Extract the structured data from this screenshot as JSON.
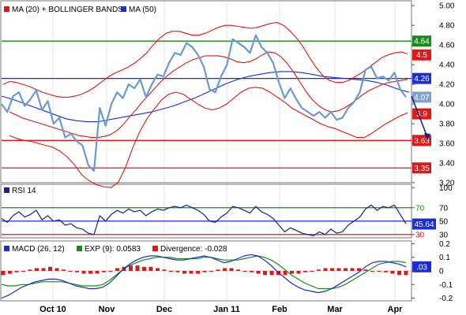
{
  "chart_data": [
    {
      "panel": "price",
      "type": "line",
      "legend": [
        {
          "label": "MA (20) + BOLLINGER BANDS",
          "color": "#e01818"
        },
        {
          "label": "MA (50)",
          "color": "#1a2dd6"
        }
      ],
      "ylim": [
        3.2,
        5.05
      ],
      "y_ticks": [
        "5.00",
        "4.80",
        "4.60",
        "4.40",
        "4.20",
        "4.00",
        "3.80",
        "3.60",
        "3.40",
        "3.20"
      ],
      "x_labels": [
        "Oct 10",
        "Nov",
        "Dec",
        "Jan 11",
        "Feb",
        "Mar",
        "Apr"
      ],
      "horizontal_lines": [
        {
          "value": 4.64,
          "label": "4.64",
          "color": "#1a8a1a"
        },
        {
          "value": 4.26,
          "label": "4.26",
          "color": "#1a2dd6"
        },
        {
          "value": 3.63,
          "label": "3.63",
          "color": "#e01818"
        },
        {
          "value": 3.35,
          "label": "3.35",
          "color": "#e01818"
        }
      ],
      "value_tags": [
        {
          "value": 4.5,
          "label": "4.5",
          "color": "#e01818"
        },
        {
          "value": 4.07,
          "label": "4.07",
          "color": "#7fa3cc"
        },
        {
          "value": 3.9,
          "label": "3.9",
          "color": "#e01818"
        }
      ],
      "series": [
        {
          "name": "price",
          "color": "#6a9ad0",
          "values": [
            4.0,
            3.92,
            4.08,
            4.12,
            3.98,
            4.05,
            4.14,
            3.94,
            4.03,
            3.8,
            3.86,
            3.66,
            3.7,
            3.62,
            3.58,
            3.38,
            3.32,
            3.96,
            3.78,
            4.0,
            4.12,
            4.06,
            4.2,
            4.16,
            4.25,
            4.07,
            4.2,
            4.3,
            4.28,
            4.42,
            4.52,
            4.5,
            4.62,
            4.58,
            4.5,
            4.38,
            4.15,
            4.12,
            4.28,
            4.4,
            4.66,
            4.62,
            4.58,
            4.52,
            4.7,
            4.58,
            4.52,
            4.42,
            4.22,
            4.06,
            4.16,
            4.05,
            3.96,
            3.92,
            3.88,
            3.92,
            3.86,
            3.92,
            3.84,
            3.86,
            3.96,
            4.02,
            4.12,
            4.35,
            4.38,
            4.26,
            4.28,
            4.24,
            4.32,
            4.15,
            4.07
          ]
        },
        {
          "name": "MA (20)",
          "color": "#e01818",
          "values": [
            3.92,
            3.89,
            3.86,
            3.84,
            3.82,
            3.8,
            3.78,
            3.76,
            3.74,
            3.72,
            3.7,
            3.68,
            3.67,
            3.66,
            3.66,
            3.67,
            3.69,
            3.73,
            3.79,
            3.87,
            3.94,
            4.02,
            4.09,
            4.16,
            4.23,
            4.29,
            4.34,
            4.38,
            4.42,
            4.45,
            4.47,
            4.49,
            4.49,
            4.49,
            4.48,
            4.46,
            4.43,
            4.42,
            4.43,
            4.46,
            4.5,
            4.53,
            4.52,
            4.48,
            4.41,
            4.32,
            4.22,
            4.12,
            4.04,
            3.98,
            3.94,
            3.92,
            3.93,
            3.96,
            4.0,
            4.05,
            4.1,
            4.14,
            4.17,
            4.2,
            4.22,
            4.23,
            4.24,
            4.25
          ]
        },
        {
          "name": "Upper band",
          "color": "#e01818",
          "values": [
            4.2,
            4.23,
            4.22,
            4.2,
            4.18,
            4.15,
            4.12,
            4.1,
            4.08,
            4.07,
            4.07,
            4.08,
            4.1,
            4.13,
            4.17,
            4.22,
            4.27,
            4.31,
            4.34,
            4.37,
            4.41,
            4.46,
            4.52,
            4.6,
            4.67,
            4.72,
            4.74,
            4.74,
            4.72,
            4.7,
            4.7,
            4.72,
            4.75,
            4.78,
            4.8,
            4.8,
            4.79,
            4.78,
            4.77,
            4.78,
            4.8,
            4.82,
            4.83,
            4.8,
            4.74,
            4.67,
            4.58,
            4.47,
            4.37,
            4.29,
            4.24,
            4.22,
            4.22,
            4.24,
            4.28,
            4.32,
            4.37,
            4.42,
            4.47,
            4.5,
            4.52,
            4.53,
            4.51
          ]
        },
        {
          "name": "Lower band",
          "color": "#e01818",
          "values": [
            3.68,
            3.65,
            3.63,
            3.62,
            3.6,
            3.58,
            3.56,
            3.52,
            3.46,
            3.38,
            3.28,
            3.22,
            3.18,
            3.16,
            3.15,
            3.2,
            3.35,
            3.55,
            3.72,
            3.85,
            3.95,
            4.04,
            4.1,
            4.12,
            4.1,
            4.05,
            4.0,
            3.96,
            3.94,
            3.96,
            4.0,
            4.06,
            4.12,
            4.16,
            4.17,
            4.16,
            4.12,
            4.07,
            4.02,
            3.96,
            3.92,
            3.88,
            3.84,
            3.8,
            3.77,
            3.75,
            3.72,
            3.69,
            3.66,
            3.66,
            3.7,
            3.75,
            3.8,
            3.84,
            3.88,
            3.91
          ]
        },
        {
          "name": "MA (50)",
          "color": "#1a2dd6",
          "values": [
            4.08,
            4.05,
            4.01,
            3.97,
            3.93,
            3.89,
            3.85,
            3.83,
            3.82,
            3.82,
            3.84,
            3.86,
            3.88,
            3.9,
            3.92,
            3.95,
            3.98,
            4.02,
            4.06,
            4.11,
            4.16,
            4.21,
            4.25,
            4.28,
            4.3,
            4.32,
            4.33,
            4.33,
            4.32,
            4.3,
            4.28,
            4.27,
            4.26,
            4.25,
            4.24,
            4.22,
            4.19,
            4.15,
            4.12
          ]
        }
      ]
    },
    {
      "panel": "rsi",
      "type": "line",
      "legend": [
        {
          "label": "RSI 14",
          "color": "#1a237e"
        }
      ],
      "ylim": [
        25,
        105
      ],
      "y_ticks": [
        "100",
        "70",
        "50",
        "30"
      ],
      "reference_lines": [
        {
          "value": 70,
          "color": "#1a8a1a"
        },
        {
          "value": 50,
          "color": "#1a2dd6"
        },
        {
          "value": 30,
          "color": "#e01818"
        }
      ],
      "value_tags": [
        {
          "value": 70,
          "label": "70",
          "color": "#1a8a1a",
          "style": "text"
        },
        {
          "value": 45.64,
          "label": "45.64",
          "color": "#1a2dd6",
          "style": "box"
        },
        {
          "value": 30,
          "label": "30",
          "color": "#e01818",
          "style": "text"
        }
      ],
      "series": [
        {
          "name": "RSI 14",
          "color": "#1a237e",
          "values": [
            54,
            48,
            58,
            64,
            56,
            60,
            66,
            52,
            58,
            50,
            52,
            44,
            46,
            40,
            38,
            32,
            30,
            58,
            50,
            60,
            66,
            62,
            68,
            64,
            66,
            58,
            64,
            68,
            66,
            70,
            72,
            70,
            74,
            70,
            66,
            60,
            50,
            48,
            56,
            62,
            72,
            70,
            66,
            62,
            72,
            64,
            60,
            54,
            44,
            34,
            40,
            36,
            32,
            30,
            28,
            34,
            30,
            38,
            32,
            34,
            44,
            50,
            56,
            68,
            74,
            66,
            72,
            70,
            74,
            60,
            46
          ]
        }
      ]
    },
    {
      "panel": "macd",
      "type": "line",
      "legend": [
        {
          "label": "MACD (26, 12)",
          "color": "#1a2dd6"
        },
        {
          "label": "EXP (9): 0.0583",
          "color": "#1a8a1a"
        },
        {
          "label": "Divergence: -0.028",
          "color": "#e01818"
        }
      ],
      "ylim": [
        -0.22,
        0.22
      ],
      "y_ticks": [
        "0.2",
        "0.1",
        "0",
        "-0.1",
        "-0.2"
      ],
      "value_tags": [
        {
          "value": 0.03,
          "label": ".03",
          "color": "#1a2dd6",
          "style": "box"
        }
      ],
      "series": [
        {
          "name": "MACD (26, 12)",
          "color": "#1a2dd6",
          "values": [
            -0.2,
            -0.18,
            -0.15,
            -0.12,
            -0.1,
            -0.08,
            -0.07,
            -0.06,
            -0.06,
            -0.07,
            -0.09,
            -0.11,
            -0.12,
            -0.13,
            -0.13,
            -0.12,
            -0.09,
            -0.04,
            0.01,
            0.05,
            0.08,
            0.1,
            0.11,
            0.11,
            0.1,
            0.09,
            0.08,
            0.08,
            0.09,
            0.1,
            0.11,
            0.1,
            0.08,
            0.06,
            0.07,
            0.09,
            0.11,
            0.12,
            0.11,
            0.08,
            0.04,
            -0.01,
            -0.05,
            -0.09,
            -0.12,
            -0.14,
            -0.15,
            -0.16,
            -0.15,
            -0.13,
            -0.1,
            -0.07,
            -0.04,
            -0.01,
            0.03,
            0.06,
            0.07,
            0.07,
            0.06,
            0.05,
            0.03
          ]
        },
        {
          "name": "EXP (9)",
          "color": "#1a8a1a",
          "values": [
            -0.1,
            -0.11,
            -0.11,
            -0.1,
            -0.1,
            -0.09,
            -0.08,
            -0.08,
            -0.08,
            -0.08,
            -0.09,
            -0.1,
            -0.11,
            -0.11,
            -0.11,
            -0.1,
            -0.07,
            -0.03,
            0.01,
            0.04,
            0.06,
            0.08,
            0.09,
            0.1,
            0.1,
            0.1,
            0.09,
            0.09,
            0.09,
            0.09,
            0.1,
            0.1,
            0.09,
            0.08,
            0.08,
            0.08,
            0.09,
            0.1,
            0.11,
            0.1,
            0.08,
            0.05,
            0.01,
            -0.03,
            -0.06,
            -0.09,
            -0.11,
            -0.13,
            -0.13,
            -0.13,
            -0.12,
            -0.1,
            -0.07,
            -0.04,
            -0.01,
            0.02,
            0.05,
            0.06,
            0.07,
            0.07,
            0.06
          ]
        },
        {
          "name": "Divergence",
          "color": "#e01818",
          "type": "bar",
          "values": [
            -0.03,
            -0.02,
            -0.01,
            0.0,
            0.01,
            0.02,
            0.02,
            0.03,
            0.02,
            0.01,
            0.0,
            -0.01,
            -0.02,
            -0.02,
            -0.02,
            -0.01,
            0.0,
            0.02,
            0.03,
            0.04,
            0.04,
            0.03,
            0.03,
            0.02,
            0.01,
            0.0,
            -0.01,
            -0.02,
            -0.02,
            -0.02,
            -0.01,
            0.0,
            0.01,
            0.02,
            0.02,
            0.01,
            0.0,
            -0.01,
            -0.02,
            -0.03,
            -0.03,
            -0.03,
            -0.03,
            -0.02,
            -0.02,
            -0.01,
            0.0,
            0.01,
            0.02,
            0.02,
            0.02,
            0.02,
            0.02,
            0.02,
            0.01,
            0.0,
            0.0,
            -0.01,
            -0.02,
            -0.03,
            -0.03
          ]
        }
      ]
    }
  ]
}
